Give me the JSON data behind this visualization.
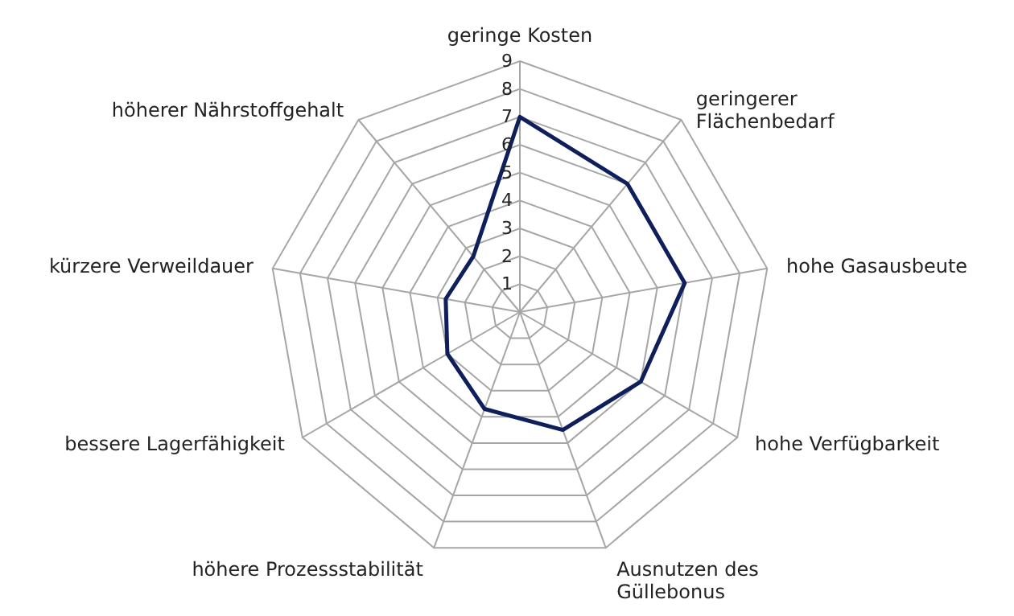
{
  "chart_data": {
    "type": "radar",
    "categories": [
      "geringe Kosten",
      "geringerer\nFlächenbedarf",
      "hohe Gasausbeute",
      "hohe Verfügbarkeit",
      "Ausnutzen des\nGüllebonus",
      "höhere Prozessstabilität",
      "bessere Lagerfähigkeit",
      "kürzere Verweildauer",
      "höherer Nährstoffgehalt"
    ],
    "series": [
      {
        "color": "#0f1f5c",
        "values": [
          7,
          6,
          6,
          5,
          4.5,
          3.7,
          3,
          2.7,
          2.6
        ]
      }
    ],
    "ylim": [
      0,
      9
    ],
    "yticks": [
      1,
      2,
      3,
      4,
      5,
      6,
      7,
      8,
      9
    ],
    "grid": true,
    "legend": false
  }
}
